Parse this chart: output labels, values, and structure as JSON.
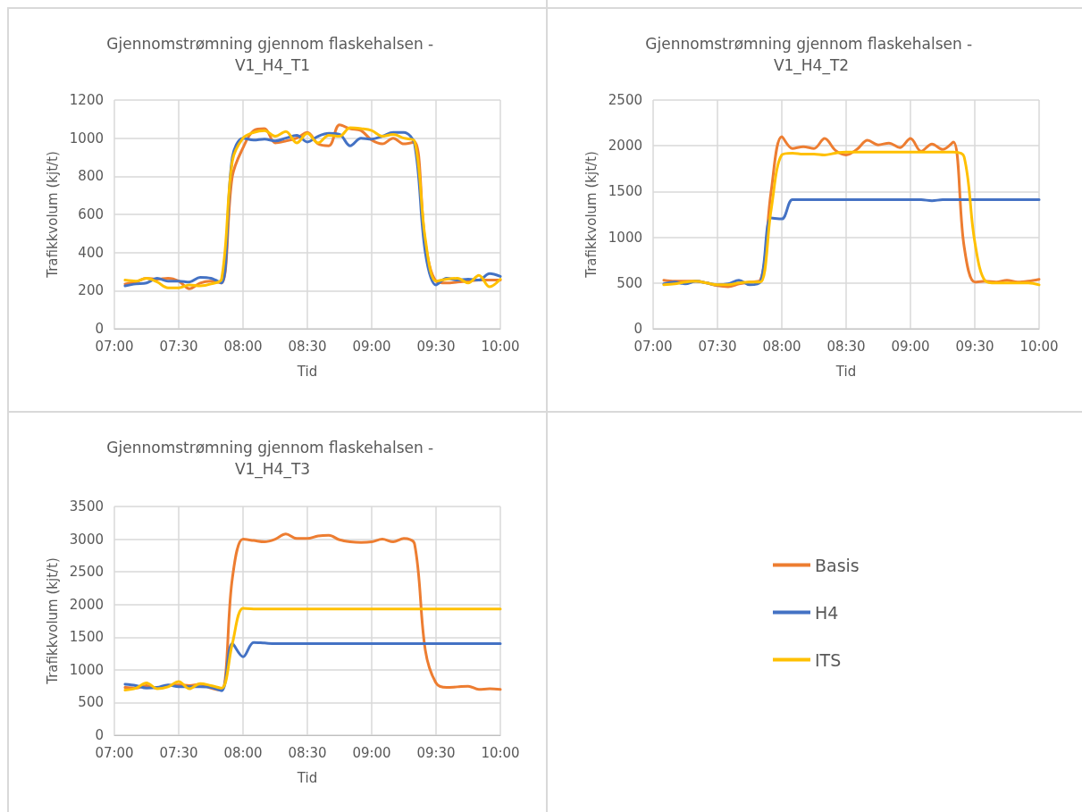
{
  "chart_data": [
    {
      "type": "line",
      "title": "Gjennomstrømning gjennom flaskehalsen - V1_H4_T1",
      "xlabel": "Tid",
      "ylabel": "Trafikkvolum (kjt/t)",
      "x": [
        7.083,
        7.167,
        7.25,
        7.333,
        7.417,
        7.5,
        7.583,
        7.667,
        7.75,
        7.833,
        7.917,
        8,
        8.083,
        8.167,
        8.25,
        8.333,
        8.417,
        8.5,
        8.583,
        8.667,
        8.75,
        8.833,
        8.917,
        9,
        9.083,
        9.167,
        9.25,
        9.333,
        9.417,
        9.5,
        9.583,
        9.667,
        9.75,
        9.833,
        9.917,
        10
      ],
      "series": [
        {
          "color": "#ed7d31",
          "values": [
            235,
            245,
            265,
            260,
            265,
            250,
            210,
            240,
            250,
            240,
            800,
            950,
            1040,
            1050,
            975,
            985,
            1000,
            1030,
            970,
            960,
            1070,
            1050,
            1040,
            990,
            970,
            1000,
            970,
            980,
            450,
            250,
            240,
            245,
            250,
            255,
            255,
            255
          ]
        },
        {
          "color": "#4472c4",
          "values": [
            225,
            235,
            240,
            265,
            250,
            250,
            245,
            270,
            265,
            240,
            900,
            1000,
            990,
            995,
            985,
            1000,
            1015,
            980,
            1010,
            1025,
            1020,
            960,
            1000,
            995,
            1010,
            1030,
            1030,
            970,
            400,
            230,
            265,
            255,
            260,
            255,
            290,
            275
          ]
        },
        {
          "color": "#ffc000",
          "values": [
            255,
            250,
            265,
            245,
            215,
            215,
            230,
            225,
            235,
            260,
            880,
            1000,
            1030,
            1040,
            1010,
            1035,
            975,
            1025,
            975,
            1015,
            1010,
            1055,
            1050,
            1040,
            1010,
            1020,
            1000,
            985,
            470,
            250,
            260,
            265,
            240,
            280,
            220,
            260
          ]
        }
      ],
      "xlim": [
        7,
        10
      ],
      "xticks": [
        {
          "value": 7,
          "label": "07:00"
        },
        {
          "value": 7.5,
          "label": "07:30"
        },
        {
          "value": 8,
          "label": "08:00"
        },
        {
          "value": 8.5,
          "label": "08:30"
        },
        {
          "value": 9,
          "label": "09:00"
        },
        {
          "value": 9.5,
          "label": "09:30"
        },
        {
          "value": 10,
          "label": "10:00"
        }
      ],
      "ylim": [
        0,
        1200
      ],
      "yticks": [
        0,
        200,
        400,
        600,
        800,
        1000,
        1200
      ],
      "grid": true,
      "legend": false,
      "marker": "none",
      "line_style": "solid"
    },
    {
      "type": "line",
      "title": "Gjennomstrømning gjennom flaskehalsen - V1_H4_T2",
      "xlabel": "Tid",
      "ylabel": "Trafikkvolum (kjt/t)",
      "x": [
        7.083,
        7.167,
        7.25,
        7.333,
        7.417,
        7.5,
        7.583,
        7.667,
        7.75,
        7.833,
        7.917,
        8,
        8.083,
        8.167,
        8.25,
        8.333,
        8.417,
        8.5,
        8.583,
        8.667,
        8.75,
        8.833,
        8.917,
        9,
        9.083,
        9.167,
        9.25,
        9.333,
        9.417,
        9.5,
        9.583,
        9.667,
        9.75,
        9.833,
        9.917,
        10
      ],
      "series": [
        {
          "color": "#ed7d31",
          "values": [
            530,
            520,
            520,
            520,
            500,
            470,
            460,
            490,
            510,
            530,
            1500,
            2100,
            1970,
            1990,
            1970,
            2080,
            1950,
            1900,
            1960,
            2060,
            2010,
            2030,
            1980,
            2080,
            1940,
            2020,
            1960,
            2040,
            900,
            510,
            520,
            510,
            530,
            510,
            520,
            540
          ]
        },
        {
          "color": "#4472c4",
          "values": [
            490,
            510,
            490,
            520,
            500,
            480,
            490,
            530,
            480,
            510,
            1210,
            1200,
            1410,
            1410,
            1410,
            1410,
            1410,
            1410,
            1410,
            1410,
            1410,
            1410,
            1410,
            1410,
            1410,
            1400,
            1410,
            1410,
            1410,
            1410,
            1410,
            1410,
            1410,
            1410,
            1410,
            1410
          ]
        },
        {
          "color": "#ffc000",
          "values": [
            480,
            490,
            510,
            520,
            500,
            480,
            480,
            500,
            510,
            510,
            1300,
            1900,
            1920,
            1910,
            1910,
            1900,
            1920,
            1930,
            1930,
            1930,
            1930,
            1930,
            1930,
            1930,
            1930,
            1930,
            1930,
            1930,
            1880,
            950,
            520,
            500,
            500,
            500,
            500,
            480
          ]
        }
      ],
      "xlim": [
        7,
        10
      ],
      "xticks": [
        {
          "value": 7,
          "label": "07:00"
        },
        {
          "value": 7.5,
          "label": "07:30"
        },
        {
          "value": 8,
          "label": "08:00"
        },
        {
          "value": 8.5,
          "label": "08:30"
        },
        {
          "value": 9,
          "label": "09:00"
        },
        {
          "value": 9.5,
          "label": "09:30"
        },
        {
          "value": 10,
          "label": "10:00"
        }
      ],
      "ylim": [
        0,
        2500
      ],
      "yticks": [
        0,
        500,
        1000,
        1500,
        2000,
        2500
      ],
      "grid": true,
      "legend": false,
      "marker": "none",
      "line_style": "solid"
    },
    {
      "type": "line",
      "title": "Gjennomstrømning gjennom flaskehalsen - V1_H4_T3",
      "xlabel": "Tid",
      "ylabel": "Trafikkvolum (kjt/t)",
      "x": [
        7.083,
        7.167,
        7.25,
        7.333,
        7.417,
        7.5,
        7.583,
        7.667,
        7.75,
        7.833,
        7.917,
        8,
        8.083,
        8.167,
        8.25,
        8.333,
        8.417,
        8.5,
        8.583,
        8.667,
        8.75,
        8.833,
        8.917,
        9,
        9.083,
        9.167,
        9.25,
        9.333,
        9.417,
        9.5,
        9.583,
        9.667,
        9.75,
        9.833,
        9.917,
        10
      ],
      "series": [
        {
          "name": "Basis",
          "color": "#ed7d31",
          "values": [
            730,
            720,
            760,
            720,
            760,
            770,
            760,
            780,
            720,
            690,
            2400,
            3000,
            2980,
            2960,
            3000,
            3080,
            3010,
            3010,
            3050,
            3060,
            2990,
            2960,
            2950,
            2960,
            3000,
            2960,
            3010,
            2930,
            1300,
            800,
            730,
            740,
            750,
            700,
            710,
            700
          ]
        },
        {
          "name": "H4",
          "color": "#4472c4",
          "values": [
            780,
            760,
            720,
            730,
            770,
            740,
            740,
            740,
            730,
            680,
            1400,
            1200,
            1420,
            1410,
            1400,
            1400,
            1400,
            1400,
            1400,
            1400,
            1400,
            1400,
            1400,
            1400,
            1400,
            1400,
            1400,
            1400,
            1400,
            1400,
            1400,
            1400,
            1400,
            1400,
            1400,
            1400
          ]
        },
        {
          "name": "ITS",
          "color": "#ffc000",
          "values": [
            690,
            720,
            800,
            710,
            740,
            820,
            710,
            790,
            760,
            720,
            1400,
            1940,
            1930,
            1930,
            1930,
            1930,
            1930,
            1930,
            1930,
            1930,
            1930,
            1930,
            1930,
            1930,
            1930,
            1930,
            1930,
            1930,
            1930,
            1930,
            1930,
            1930,
            1930,
            1930,
            1930,
            1930
          ]
        }
      ],
      "xlim": [
        7,
        10
      ],
      "xticks": [
        {
          "value": 7,
          "label": "07:00"
        },
        {
          "value": 7.5,
          "label": "07:30"
        },
        {
          "value": 8,
          "label": "08:00"
        },
        {
          "value": 8.5,
          "label": "08:30"
        },
        {
          "value": 9,
          "label": "09:00"
        },
        {
          "value": 9.5,
          "label": "09:30"
        },
        {
          "value": 10,
          "label": "10:00"
        }
      ],
      "ylim": [
        0,
        3500
      ],
      "yticks": [
        0,
        500,
        1000,
        1500,
        2000,
        2500,
        3000,
        3500
      ],
      "grid": true,
      "legend": "right",
      "marker": "none",
      "line_style": "solid"
    }
  ]
}
